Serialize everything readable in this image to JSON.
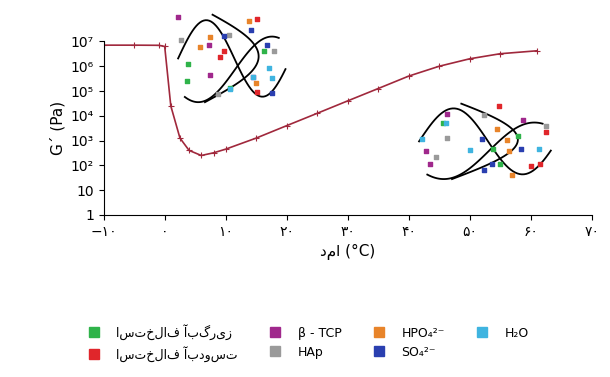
{
  "chart_data": {
    "type": "line",
    "x_label": "دما (°C)",
    "y_label": "G´ (Pa)",
    "log": "y",
    "grid": false,
    "x": [
      -10,
      -5,
      -1,
      0,
      1,
      2.5,
      4,
      6,
      8,
      10,
      15,
      20,
      25,
      30,
      35,
      40,
      45,
      50,
      55,
      61
    ],
    "series": [
      {
        "name": "G´",
        "color": "#a0283c",
        "marker": "plus",
        "line_style": "solid",
        "values": [
          7100000,
          7100000,
          7000000,
          6300000,
          25000,
          1260,
          400,
          250,
          320,
          450,
          1260,
          4000,
          12600,
          40000,
          126000,
          400000,
          1000000,
          2000000,
          3200000,
          4200000
        ]
      }
    ],
    "xlim": [
      -10,
      70
    ],
    "xticks": [
      {
        "value": -10,
        "label": "−۱۰"
      },
      {
        "value": 0,
        "label": "۰"
      },
      {
        "value": 10,
        "label": "۱۰"
      },
      {
        "value": 20,
        "label": "۲۰"
      },
      {
        "value": 30,
        "label": "۳۰"
      },
      {
        "value": 40,
        "label": "۴۰"
      },
      {
        "value": 50,
        "label": "۵۰"
      },
      {
        "value": 60,
        "label": "۶۰"
      },
      {
        "value": 70,
        "label": "۷۰"
      }
    ],
    "ylim": [
      1,
      10000000
    ],
    "yticks": [
      1,
      10,
      {
        "value": 100,
        "label": "10²"
      },
      {
        "value": 1000,
        "label": "10³"
      },
      {
        "value": 10000,
        "label": "10⁴"
      },
      {
        "value": 100000,
        "label": "10⁵"
      },
      {
        "value": 1000000,
        "label": "10⁶"
      },
      {
        "value": 10000000,
        "label": "10⁷"
      }
    ]
  },
  "key": [
    {
      "name": "استخلاف آبگریز",
      "color": "#2fb34a"
    },
    {
      "name": "استخلاف آبدوست",
      "color": "#e0262b"
    },
    {
      "name": "β - TCP",
      "color": "#a0288c"
    },
    {
      "name": "HAp",
      "color": "#9a9a9a"
    },
    {
      "name": "HPO₄²⁻",
      "color": "#e8842a"
    },
    {
      "name": "SO₄²⁻",
      "color": "#2a3fb0"
    },
    {
      "name": "H₂O",
      "color": "#3fb4e0"
    }
  ]
}
